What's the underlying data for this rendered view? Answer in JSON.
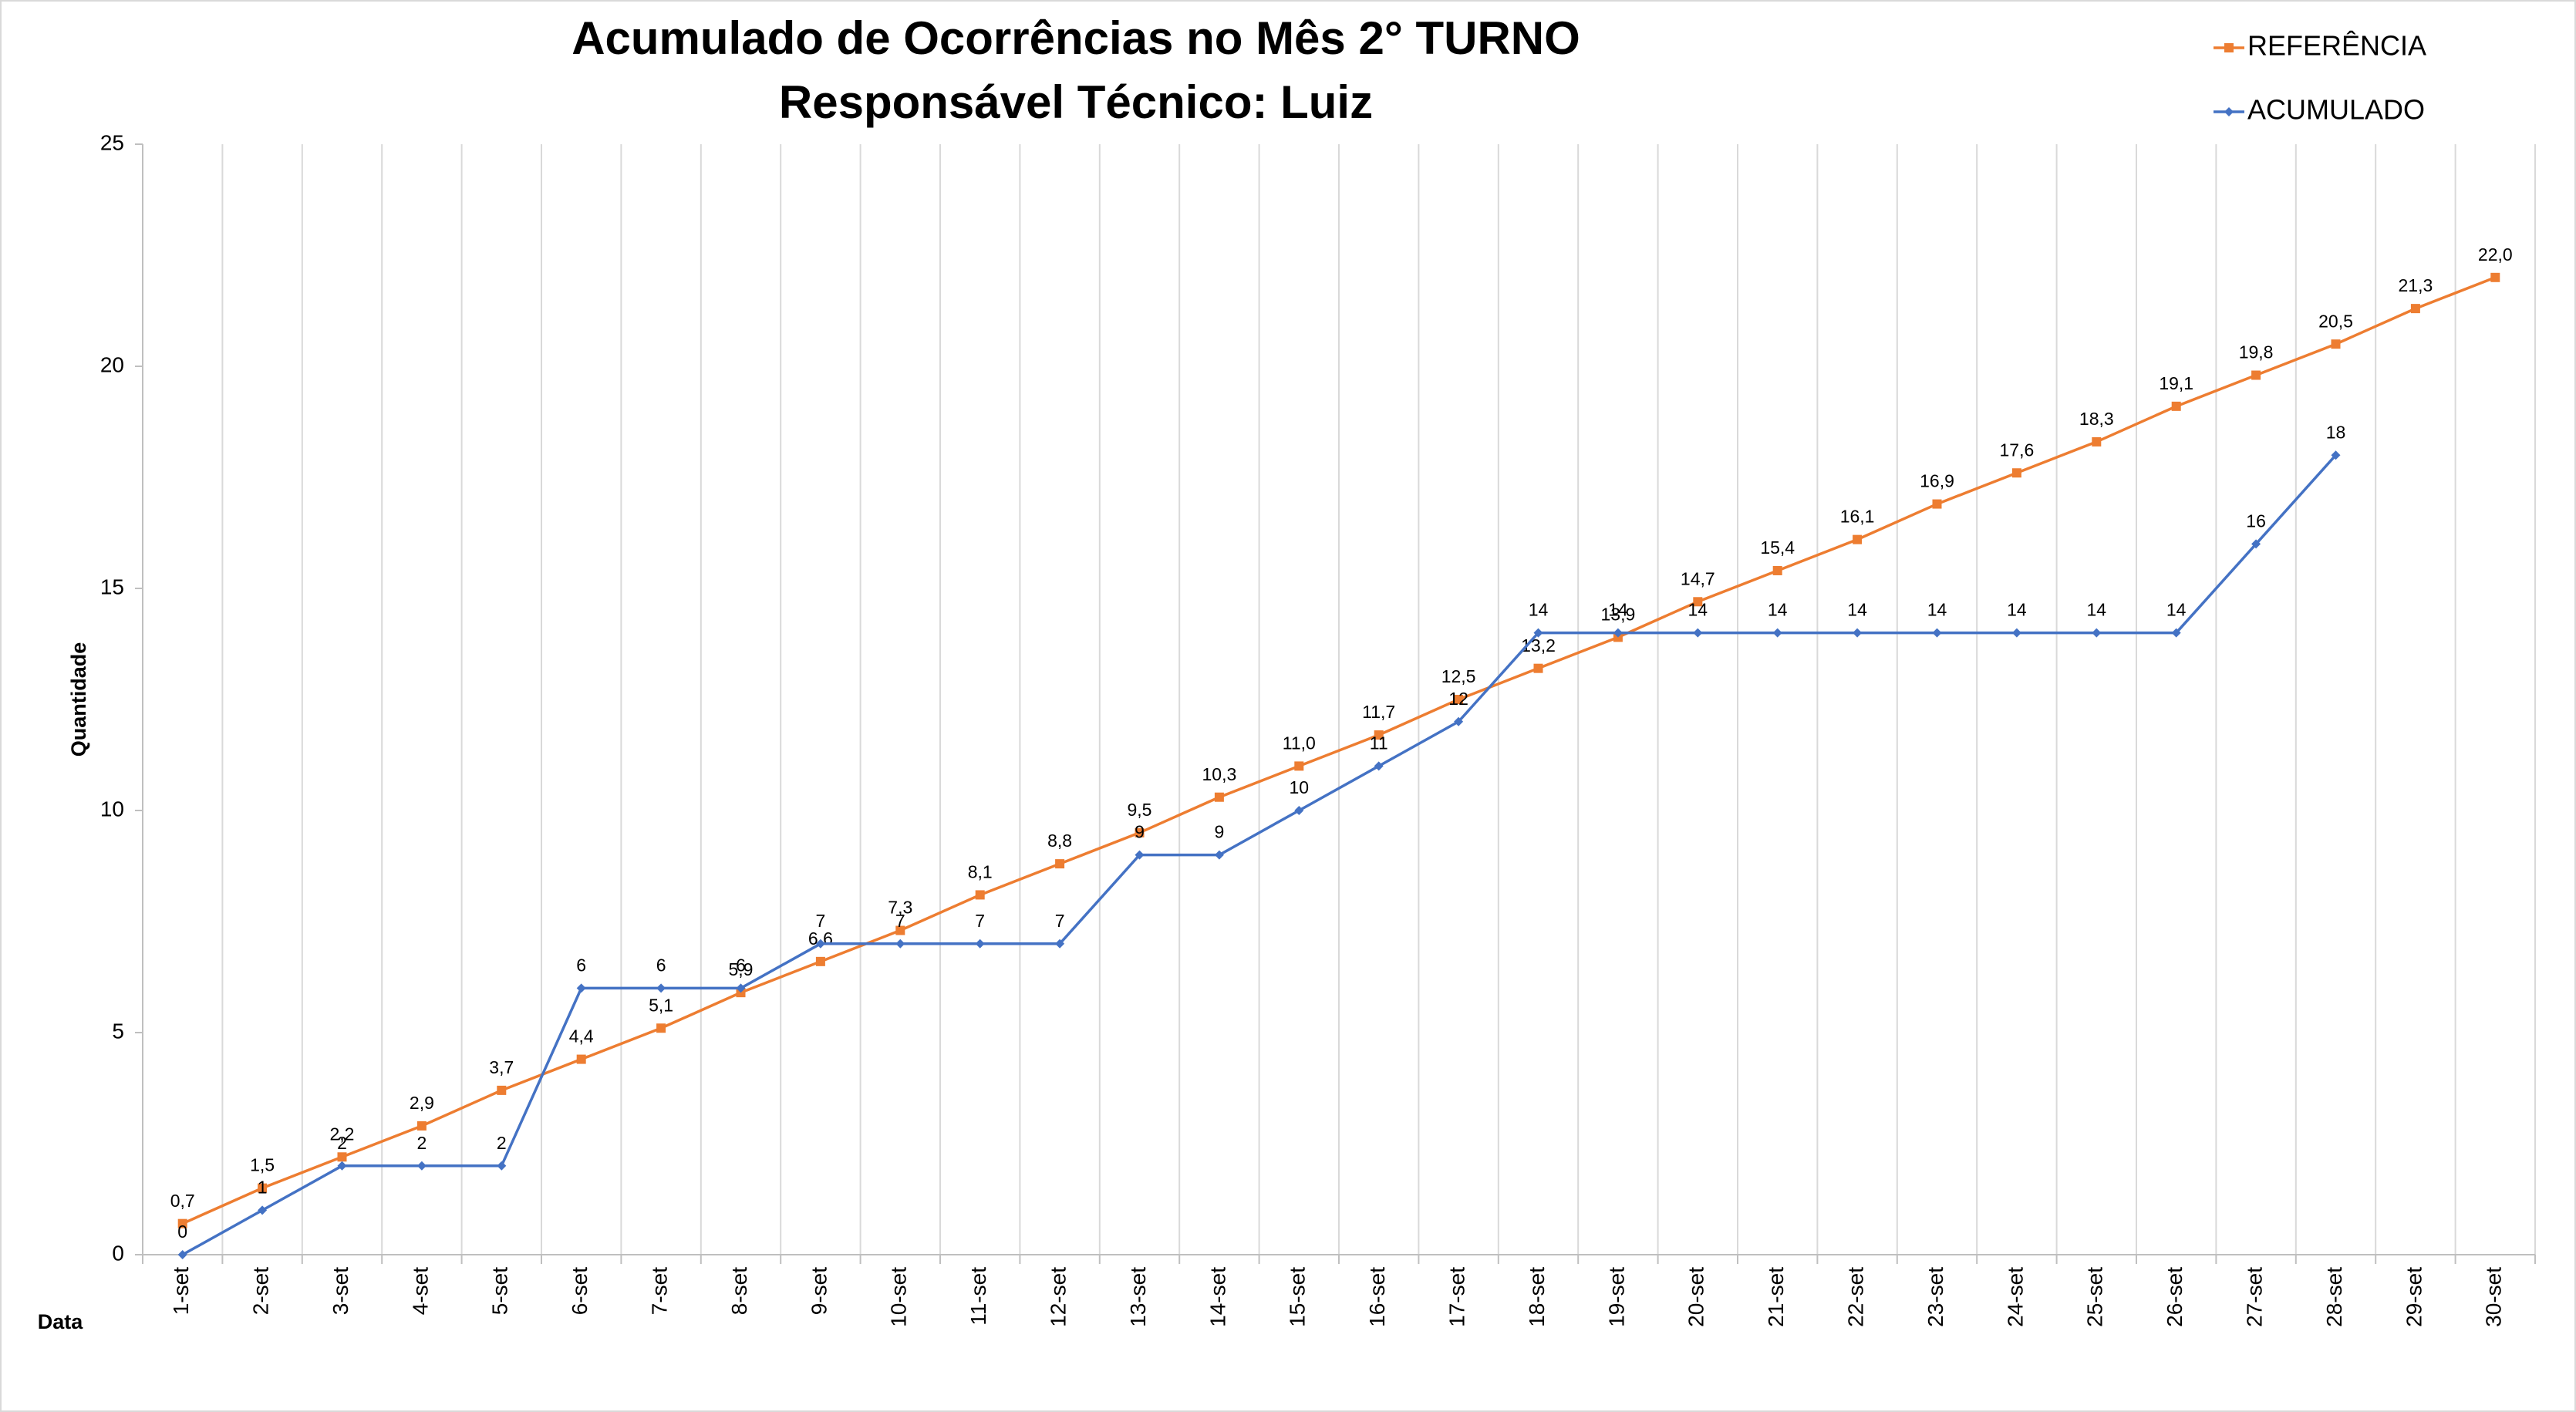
{
  "chart_data": {
    "type": "line",
    "title": [
      "Acumulado de Ocorrências no Mês 2° TURNO",
      "Responsável Técnico:  Luiz"
    ],
    "y_label": "Quantidade",
    "x_label": "Data",
    "categories": [
      "1-set",
      "2-set",
      "3-set",
      "4-set",
      "5-set",
      "6-set",
      "7-set",
      "8-set",
      "9-set",
      "10-set",
      "11-set",
      "12-set",
      "13-set",
      "14-set",
      "15-set",
      "16-set",
      "17-set",
      "18-set",
      "19-set",
      "20-set",
      "21-set",
      "22-set",
      "23-set",
      "24-set",
      "25-set",
      "26-set",
      "27-set",
      "28-set",
      "29-set",
      "30-set"
    ],
    "series": [
      {
        "name": "REFERÊNCIA",
        "color": "#ed7d31",
        "marker": "square",
        "values": [
          0.7,
          1.5,
          2.2,
          2.9,
          3.7,
          4.4,
          5.1,
          5.9,
          6.6,
          7.3,
          8.1,
          8.8,
          9.5,
          10.3,
          11.0,
          11.7,
          12.5,
          13.2,
          13.9,
          14.7,
          15.4,
          16.1,
          16.9,
          17.6,
          18.3,
          19.1,
          19.8,
          20.5,
          21.3,
          22.0
        ],
        "value_labels": [
          "0,7",
          "1,5",
          "2,2",
          "2,9",
          "3,7",
          "4,4",
          "5,1",
          "5,9",
          "6,6",
          "7,3",
          "8,1",
          "8,8",
          "9,5",
          "10,3",
          "11,0",
          "11,7",
          "12,5",
          "13,2",
          "13,9",
          "14,7",
          "15,4",
          "16,1",
          "16,9",
          "17,6",
          "18,3",
          "19,1",
          "19,8",
          "20,5",
          "21,3",
          "22,0"
        ]
      },
      {
        "name": "ACUMULADO",
        "color": "#4472c4",
        "marker": "diamond",
        "values": [
          0,
          1,
          2,
          2,
          2,
          6,
          6,
          6,
          7,
          7,
          7,
          7,
          9,
          9,
          10,
          11,
          12,
          14,
          14,
          14,
          14,
          14,
          14,
          14,
          14,
          14,
          16,
          18,
          null,
          null
        ]
      }
    ],
    "ylim": [
      0,
      25
    ],
    "yticks": [
      0,
      5,
      10,
      15,
      20,
      25
    ],
    "grid": false,
    "legend": "top-right"
  }
}
